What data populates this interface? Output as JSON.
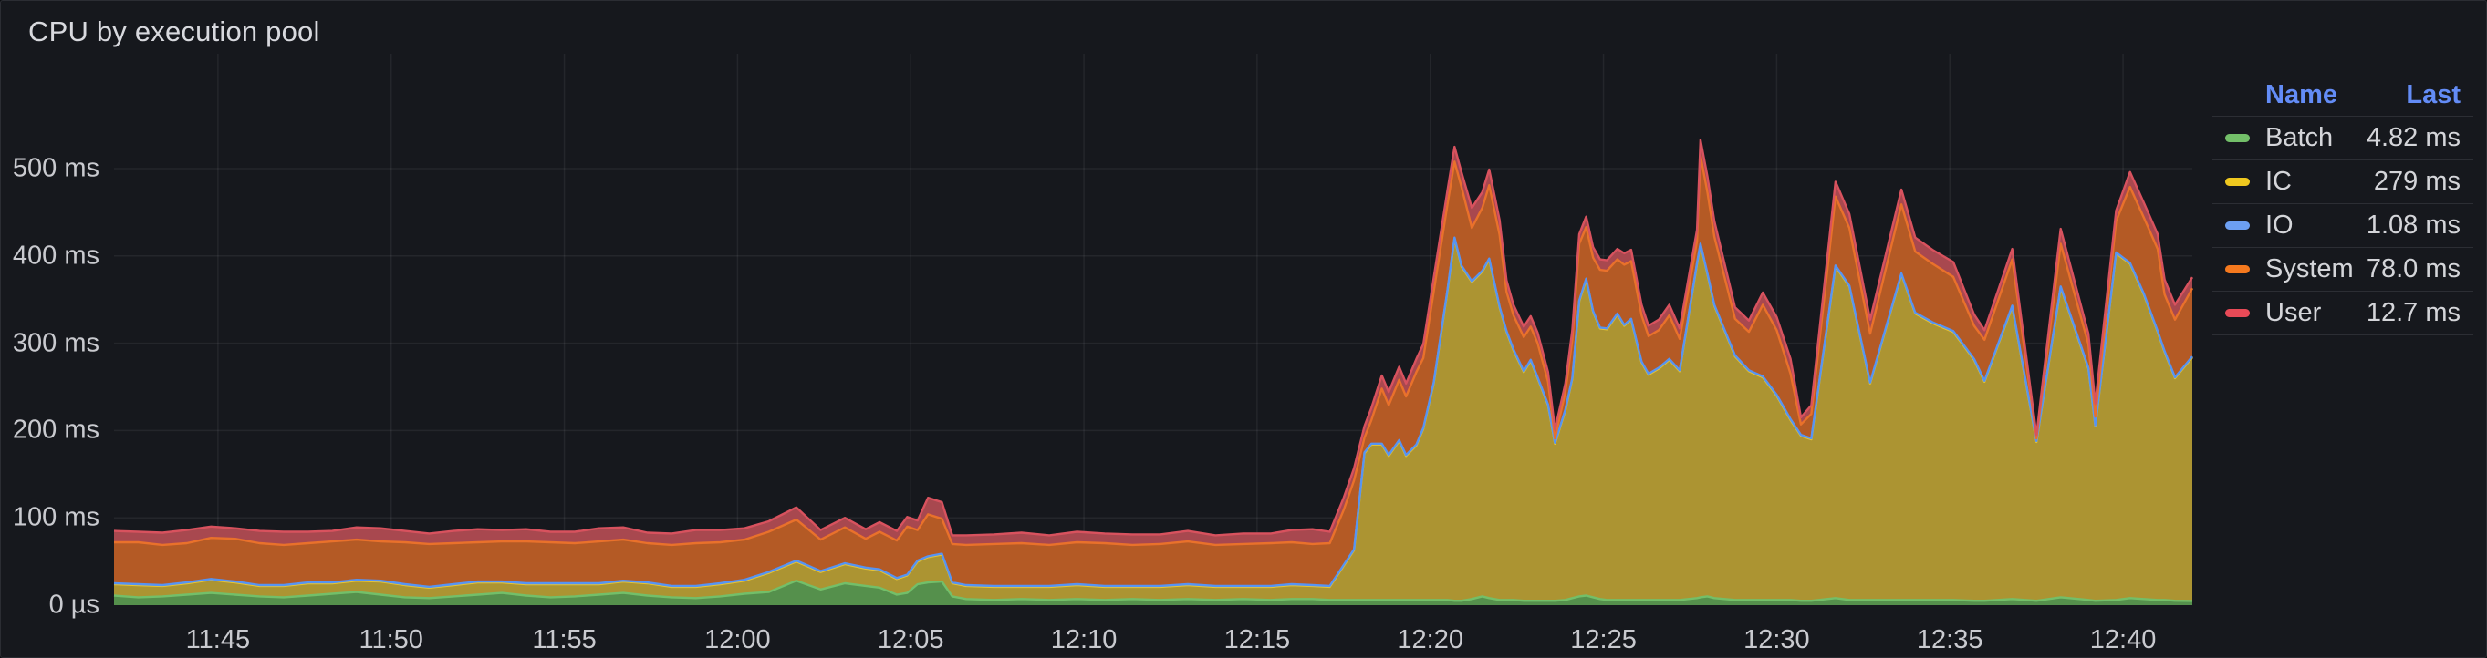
{
  "panel": {
    "title": "CPU by execution pool"
  },
  "legend": {
    "name_col": "Name",
    "last_col": "Last",
    "rows": [
      {
        "name": "Batch",
        "last": "4.82 ms",
        "color": "#73BF69"
      },
      {
        "name": "IC",
        "last": "279 ms",
        "color": "#EFC81F"
      },
      {
        "name": "IO",
        "last": "1.08 ms",
        "color": "#6C9FF2"
      },
      {
        "name": "System",
        "last": "78.0 ms",
        "color": "#F5791E"
      },
      {
        "name": "User",
        "last": "12.7 ms",
        "color": "#E84A57"
      }
    ]
  },
  "chart_data": {
    "type": "area",
    "stacked": true,
    "title": "CPU by execution pool",
    "unit": "ms",
    "grid": true,
    "legend_position": "right",
    "ylim": [
      0,
      630
    ],
    "y_ticks": [
      {
        "label": "0 µs",
        "value": 0
      },
      {
        "label": "100 ms",
        "value": 100
      },
      {
        "label": "200 ms",
        "value": 200
      },
      {
        "label": "300 ms",
        "value": 300
      },
      {
        "label": "400 ms",
        "value": 400
      },
      {
        "label": "500 ms",
        "value": 500
      }
    ],
    "x_window": [
      "11:42",
      "12:42"
    ],
    "x_tick_labels": [
      "11:45",
      "11:50",
      "11:55",
      "12:00",
      "12:05",
      "12:10",
      "12:15",
      "12:20",
      "12:25",
      "12:30",
      "12:35",
      "12:40"
    ],
    "x_tick_minutes": [
      3,
      8,
      13,
      18,
      23,
      28,
      33,
      38,
      43,
      48,
      53,
      58
    ],
    "x_minutes": [
      0,
      0.7,
      1.4,
      2.1,
      2.8,
      3.5,
      4.2,
      4.9,
      5.6,
      6.3,
      7,
      7.7,
      8.4,
      9.1,
      9.8,
      10.5,
      11.2,
      11.9,
      12.6,
      13.3,
      14,
      14.7,
      15.4,
      16.1,
      16.8,
      17.5,
      18.2,
      18.9,
      19.7,
      20.4,
      21.1,
      21.7,
      22.1,
      22.6,
      22.9,
      23.2,
      23.5,
      23.9,
      24.2,
      24.6,
      25.4,
      26.2,
      27,
      27.8,
      28.6,
      29.4,
      30.2,
      31,
      31.8,
      32.6,
      33.4,
      34,
      34.6,
      35.1,
      35.5,
      35.8,
      36.1,
      36.3,
      36.6,
      36.8,
      37.1,
      37.3,
      37.6,
      37.8,
      38.1,
      38.5,
      38.7,
      38.9,
      39.2,
      39.5,
      39.7,
      40,
      40.2,
      40.4,
      40.7,
      40.9,
      41.1,
      41.4,
      41.6,
      41.9,
      42.1,
      42.3,
      42.5,
      42.7,
      42.9,
      43.1,
      43.4,
      43.6,
      43.8,
      44.1,
      44.3,
      44.6,
      44.9,
      45.2,
      45.7,
      45.8,
      46,
      46.2,
      46.8,
      47.2,
      47.6,
      48,
      48.4,
      48.7,
      49,
      49.7,
      50.1,
      50.7,
      51.6,
      52,
      52.5,
      53.1,
      53.7,
      54,
      54.8,
      55.5,
      56.2,
      57,
      57.2,
      57.8,
      58.2,
      58.6,
      59,
      59.2,
      59.5,
      60
    ],
    "series": [
      {
        "name": "Batch",
        "line": "#73BF69",
        "fill": "#55904C",
        "values": [
          11,
          9,
          10,
          12,
          14,
          12,
          10,
          9,
          11,
          13,
          15,
          12,
          9,
          8,
          10,
          12,
          14,
          11,
          9,
          10,
          12,
          14,
          11,
          9,
          8,
          10,
          13,
          15,
          28,
          18,
          25,
          22,
          20,
          12,
          14,
          24,
          26,
          27,
          10,
          7,
          6,
          7,
          6,
          7,
          6,
          7,
          6,
          7,
          6,
          7,
          6,
          7,
          7,
          6,
          6,
          6,
          6,
          6,
          6,
          6,
          6,
          6,
          6,
          6,
          6,
          6,
          5,
          5,
          7,
          10,
          8,
          6,
          6,
          6,
          5,
          5,
          5,
          5,
          5,
          6,
          8,
          10,
          11,
          9,
          7,
          6,
          6,
          6,
          6,
          6,
          6,
          6,
          6,
          6,
          8,
          9,
          10,
          8,
          6,
          6,
          6,
          6,
          6,
          5,
          5,
          8,
          6,
          6,
          6,
          6,
          6,
          6,
          5,
          5,
          7,
          5,
          9,
          6,
          5,
          6,
          8,
          7,
          6,
          6,
          5,
          4.82
        ]
      },
      {
        "name": "IC",
        "line": "#EAC530",
        "fill": "#AC9432",
        "values": [
          13,
          14,
          12,
          13,
          15,
          14,
          12,
          13,
          14,
          12,
          13,
          15,
          14,
          12,
          13,
          14,
          12,
          13,
          15,
          14,
          12,
          13,
          14,
          12,
          13,
          14,
          15,
          22,
          22,
          20,
          22,
          20,
          20,
          18,
          20,
          26,
          29,
          31,
          15,
          15,
          15,
          14,
          15,
          16,
          15,
          14,
          15,
          16,
          15,
          14,
          15,
          16,
          15,
          15,
          39,
          57,
          168,
          178,
          178,
          165,
          182,
          165,
          177,
          196,
          248,
          355,
          415,
          383,
          363,
          372,
          388,
          335,
          307,
          286,
          262,
          275,
          255,
          224,
          180,
          217,
          251,
          338,
          362,
          327,
          310,
          310,
          327,
          314,
          321,
          272,
          258,
          265,
          275,
          262,
          383,
          404,
          369,
          335,
          279,
          262,
          255,
          234,
          206,
          189,
          185,
          380,
          359,
          248,
          373,
          328,
          317,
          307,
          276,
          251,
          335,
          182,
          355,
          265,
          200,
          397,
          383,
          349,
          307,
          284,
          255,
          279
        ]
      },
      {
        "name": "IO",
        "line": "#5794F2",
        "fill": "#5794F2",
        "values": [
          1,
          1,
          1,
          1,
          1,
          1,
          1,
          1,
          1,
          1,
          1,
          1,
          1,
          1,
          1,
          1,
          1,
          1,
          1,
          1,
          1,
          1,
          1,
          1,
          1,
          1,
          1,
          1,
          1,
          1,
          1,
          1,
          1,
          1,
          1,
          1,
          1,
          1,
          1,
          1,
          1,
          1,
          1,
          1,
          1,
          1,
          1,
          1,
          1,
          1,
          1,
          1,
          1,
          1,
          1,
          1,
          1,
          1,
          1,
          1,
          1,
          1,
          1,
          1,
          1,
          1,
          1,
          1,
          1,
          1,
          1,
          1,
          1,
          1,
          1,
          1,
          1,
          1,
          1,
          1,
          1,
          1,
          1,
          1,
          1,
          1,
          1,
          1,
          1,
          1,
          1,
          1,
          1,
          1,
          1,
          1,
          1,
          1,
          1,
          1,
          1,
          1,
          1,
          1,
          1,
          1,
          1,
          1,
          1,
          1,
          1,
          1,
          1,
          1,
          1,
          1,
          1,
          1,
          1,
          1,
          1,
          1,
          1,
          1,
          1,
          1.08
        ]
      },
      {
        "name": "System",
        "line": "#E9712B",
        "fill": "#B45A25",
        "values": [
          47,
          48,
          46,
          45,
          47,
          49,
          48,
          46,
          45,
          47,
          46,
          45,
          48,
          49,
          47,
          45,
          46,
          48,
          47,
          46,
          48,
          47,
          45,
          47,
          49,
          47,
          46,
          46,
          47,
          36,
          41,
          33,
          43,
          43,
          55,
          35,
          48,
          40,
          44,
          46,
          48,
          49,
          47,
          48,
          49,
          47,
          48,
          49,
          47,
          48,
          49,
          48,
          47,
          49,
          63,
          79,
          17,
          27,
          63,
          57,
          69,
          67,
          83,
          80,
          104,
          98,
          87,
          90,
          61,
          72,
          84,
          82,
          45,
          39,
          39,
          38,
          39,
          26,
          5,
          20,
          44,
          65,
          59,
          61,
          66,
          66,
          62,
          69,
          66,
          53,
          43,
          43,
          50,
          36,
          25,
          101,
          93,
          78,
          42,
          44,
          82,
          74,
          52,
          12,
          28,
          79,
          66,
          56,
          79,
          70,
          67,
          62,
          38,
          47,
          53,
          3,
          49,
          27,
          10,
          36,
          87,
          87,
          94,
          65,
          66,
          78
        ]
      },
      {
        "name": "User",
        "line": "#D8525E",
        "fill": "#A8484F",
        "values": [
          13,
          12,
          14,
          15,
          13,
          12,
          14,
          15,
          13,
          12,
          14,
          15,
          13,
          12,
          14,
          15,
          13,
          14,
          12,
          13,
          15,
          14,
          12,
          13,
          15,
          14,
          13,
          12,
          14,
          11,
          11,
          11,
          11,
          11,
          11,
          11,
          19,
          19,
          10,
          11,
          11,
          12,
          11,
          12,
          11,
          12,
          11,
          12,
          11,
          12,
          11,
          14,
          17,
          13,
          14,
          14,
          13,
          14,
          15,
          15,
          15,
          15,
          15,
          16,
          16,
          16,
          17,
          17,
          23,
          18,
          18,
          17,
          13,
          12,
          12,
          12,
          12,
          11,
          10,
          10,
          11,
          11,
          12,
          12,
          12,
          12,
          12,
          13,
          13,
          12,
          12,
          12,
          12,
          12,
          13,
          18,
          18,
          18,
          13,
          13,
          14,
          15,
          17,
          8,
          10,
          17,
          16,
          16,
          17,
          16,
          16,
          17,
          13,
          11,
          12,
          4,
          17,
          12,
          15,
          12,
          17,
          17,
          17,
          17,
          17,
          12.7
        ]
      }
    ]
  }
}
